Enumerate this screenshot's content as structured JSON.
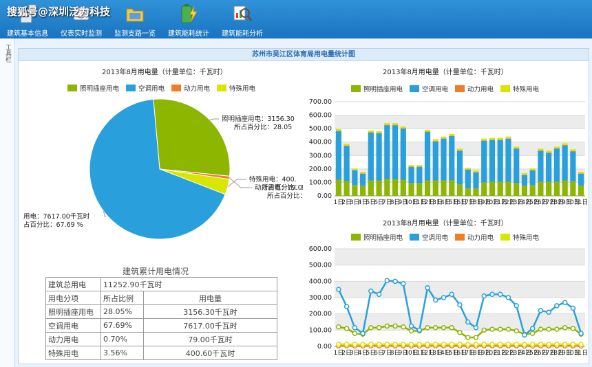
{
  "watermark": "搜狐号@深圳泛为科技",
  "nav": [
    {
      "label": "建筑基本信息",
      "icon": "building-info-icon"
    },
    {
      "label": "仪表实时监测",
      "icon": "meter-monitor-icon"
    },
    {
      "label": "监测支路一览",
      "icon": "branch-folder-icon"
    },
    {
      "label": "建筑能耗统计",
      "icon": "battery-energy-icon"
    },
    {
      "label": "建筑能耗分析",
      "icon": "magnifier-analysis-icon"
    }
  ],
  "sidebar_label": "工具栏",
  "panel_title": "苏州市吴江区体育局用电量统计图",
  "colors": {
    "lighting": "#8db600",
    "ac": "#29a0dc",
    "power": "#f07c28",
    "special": "#d8e600",
    "accent": "#1a73c0"
  },
  "legend": [
    "照明插座用电",
    "空调用电",
    "动力用电",
    "特殊用电"
  ],
  "chart_data": [
    {
      "type": "pie",
      "title": "2013年8月用电量（计量单位：千瓦时）",
      "categories": [
        "照明插座用电",
        "空调用电",
        "动力用电",
        "特殊用电"
      ],
      "values": [
        3156.3,
        7617.0,
        79.0,
        400.6
      ],
      "labels": [
        [
          "照明插座用电：3156.30",
          "所占百分比：28.05"
        ],
        [
          "用电：7617.00千瓦时",
          "占百分比：67.69 %"
        ],
        [
          "动力用电：79.00",
          "所占百分比：0"
        ],
        [
          "特殊用电：400.",
          "所占百分比：3."
        ]
      ],
      "legend_position": "top"
    },
    {
      "type": "bar",
      "stacked": true,
      "title": "2013年8月用电量（计量单位：千瓦时）",
      "categories": [
        "1日",
        "2日",
        "3日",
        "4日",
        "5日",
        "6日",
        "7日",
        "8日",
        "9日",
        "10日",
        "11日",
        "12日",
        "13日",
        "14日",
        "15日",
        "16日",
        "17日",
        "18日",
        "19日",
        "20日",
        "21日",
        "22日",
        "23日",
        "24日",
        "25日",
        "26日",
        "27日",
        "28日",
        "29日",
        "30日",
        "31日"
      ],
      "series": [
        {
          "name": "照明插座用电",
          "values": [
            120,
            110,
            80,
            75,
            115,
            115,
            125,
            125,
            120,
            95,
            95,
            115,
            115,
            115,
            115,
            85,
            55,
            55,
            100,
            105,
            105,
            105,
            95,
            75,
            80,
            105,
            105,
            105,
            115,
            110,
            75
          ]
        },
        {
          "name": "空调用电",
          "values": [
            360,
            260,
            110,
            90,
            355,
            350,
            400,
            400,
            380,
            120,
            120,
            360,
            290,
            310,
            330,
            250,
            140,
            120,
            310,
            310,
            310,
            320,
            255,
            80,
            110,
            230,
            215,
            245,
            260,
            220,
            90
          ]
        },
        {
          "name": "动力用电",
          "values": [
            3,
            3,
            2,
            2,
            3,
            3,
            3,
            3,
            3,
            2,
            2,
            3,
            3,
            3,
            3,
            3,
            2,
            2,
            3,
            3,
            3,
            3,
            3,
            2,
            2,
            3,
            3,
            3,
            3,
            3,
            2
          ]
        },
        {
          "name": "特殊用电",
          "values": [
            13,
            13,
            12,
            12,
            13,
            13,
            13,
            13,
            13,
            12,
            12,
            13,
            13,
            13,
            13,
            13,
            12,
            12,
            13,
            13,
            13,
            13,
            13,
            12,
            12,
            13,
            13,
            13,
            13,
            13,
            12
          ]
        }
      ],
      "ylim": [
        0,
        700
      ],
      "yticks": [
        "0.00",
        "100.00",
        "200.00",
        "300.00",
        "400.00",
        "500.00",
        "600.00",
        "700.00"
      ],
      "grid": true,
      "legend_position": "top"
    },
    {
      "type": "line",
      "title": "2013年8月用电量（计量单位：千瓦时）",
      "categories": [
        "1日",
        "2日",
        "3日",
        "4日",
        "5日",
        "6日",
        "7日",
        "8日",
        "9日",
        "10日",
        "11日",
        "12日",
        "13日",
        "14日",
        "15日",
        "16日",
        "17日",
        "18日",
        "19日",
        "20日",
        "21日",
        "22日",
        "23日",
        "24日",
        "25日",
        "26日",
        "27日",
        "28日",
        "29日",
        "30日",
        "31日"
      ],
      "series": [
        {
          "name": "照明插座用电",
          "values": [
            120,
            110,
            80,
            75,
            115,
            115,
            125,
            125,
            120,
            95,
            95,
            115,
            115,
            115,
            115,
            85,
            55,
            55,
            100,
            105,
            105,
            105,
            95,
            75,
            80,
            105,
            105,
            105,
            115,
            110,
            75
          ]
        },
        {
          "name": "空调用电",
          "values": [
            350,
            245,
            115,
            80,
            340,
            320,
            405,
            400,
            385,
            125,
            100,
            360,
            285,
            300,
            320,
            255,
            150,
            115,
            310,
            320,
            320,
            300,
            250,
            70,
            110,
            220,
            210,
            250,
            270,
            235,
            80
          ]
        },
        {
          "name": "动力用电",
          "values": [
            3,
            3,
            2,
            2,
            3,
            3,
            3,
            3,
            3,
            2,
            2,
            3,
            3,
            3,
            3,
            3,
            2,
            2,
            3,
            3,
            3,
            3,
            3,
            2,
            2,
            3,
            3,
            3,
            3,
            3,
            2
          ]
        },
        {
          "name": "特殊用电",
          "values": [
            13,
            13,
            12,
            12,
            13,
            13,
            13,
            13,
            13,
            12,
            12,
            13,
            13,
            13,
            13,
            13,
            12,
            12,
            13,
            13,
            13,
            13,
            13,
            12,
            12,
            13,
            13,
            13,
            13,
            13,
            12
          ]
        }
      ],
      "ylim": [
        0,
        600
      ],
      "yticks": [
        "0.00",
        "100.00",
        "200.00",
        "300.00",
        "400.00",
        "500.00",
        "600.00"
      ],
      "grid": true,
      "legend_position": "top"
    }
  ],
  "summary": {
    "title": "建筑累计用电情况",
    "total_label": "建筑总用电",
    "total_value": "11252.90千瓦时",
    "headers": [
      "用电分项",
      "所占比例",
      "用电量"
    ],
    "rows": [
      [
        "照明插座用电",
        "28.05%",
        "3156.30千瓦时"
      ],
      [
        "空调用电",
        "67.69%",
        "7617.00千瓦时"
      ],
      [
        "动力用电",
        "0.70%",
        "79.00千瓦时"
      ],
      [
        "特殊用电",
        "3.56%",
        "400.60千瓦时"
      ]
    ]
  }
}
